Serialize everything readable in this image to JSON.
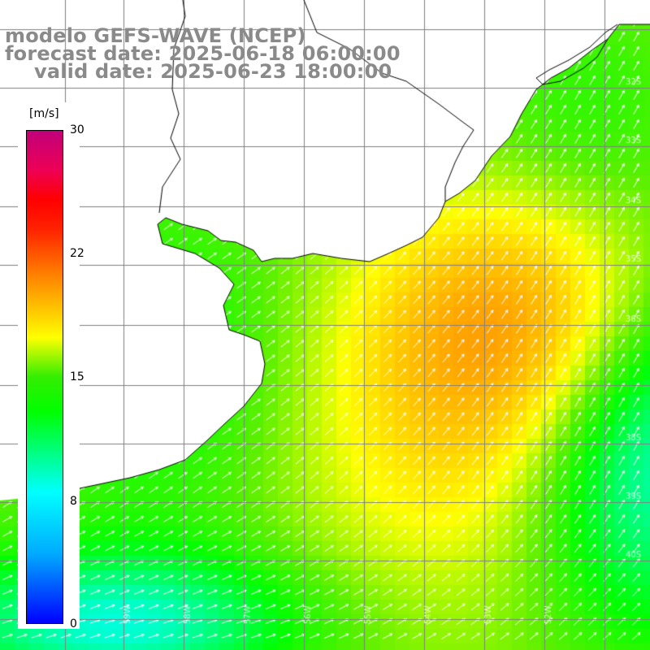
{
  "header": {
    "line1": "modelo GEFS-WAVE (NCEP)",
    "line2": "forecast date: 2025-06-18 06:00:00",
    "line3": "valid date: 2025-06-23 18:00:00"
  },
  "colorbar": {
    "unit": "[m/s]",
    "ticks": [
      "30",
      "22",
      "15",
      "8",
      "0"
    ],
    "tick_values": [
      30,
      22,
      15,
      8,
      0
    ],
    "min": 0,
    "max": 30,
    "colors": [
      "#0000ff",
      "#00aaff",
      "#00ffff",
      "#00ff00",
      "#ffff00",
      "#ffcc00",
      "#ff8800",
      "#ff0000",
      "#c0007a"
    ]
  },
  "map": {
    "lat_labels": [
      "32S",
      "33S",
      "34S",
      "35S",
      "36S",
      "38S",
      "39S",
      "40S"
    ],
    "lon_labels": [
      "59W",
      "58W",
      "57W",
      "56W",
      "55W",
      "54W",
      "53W",
      "52W"
    ],
    "land_color": "#ffffff",
    "grid_color": "#808080",
    "arrow_color": "#ffffff"
  }
}
